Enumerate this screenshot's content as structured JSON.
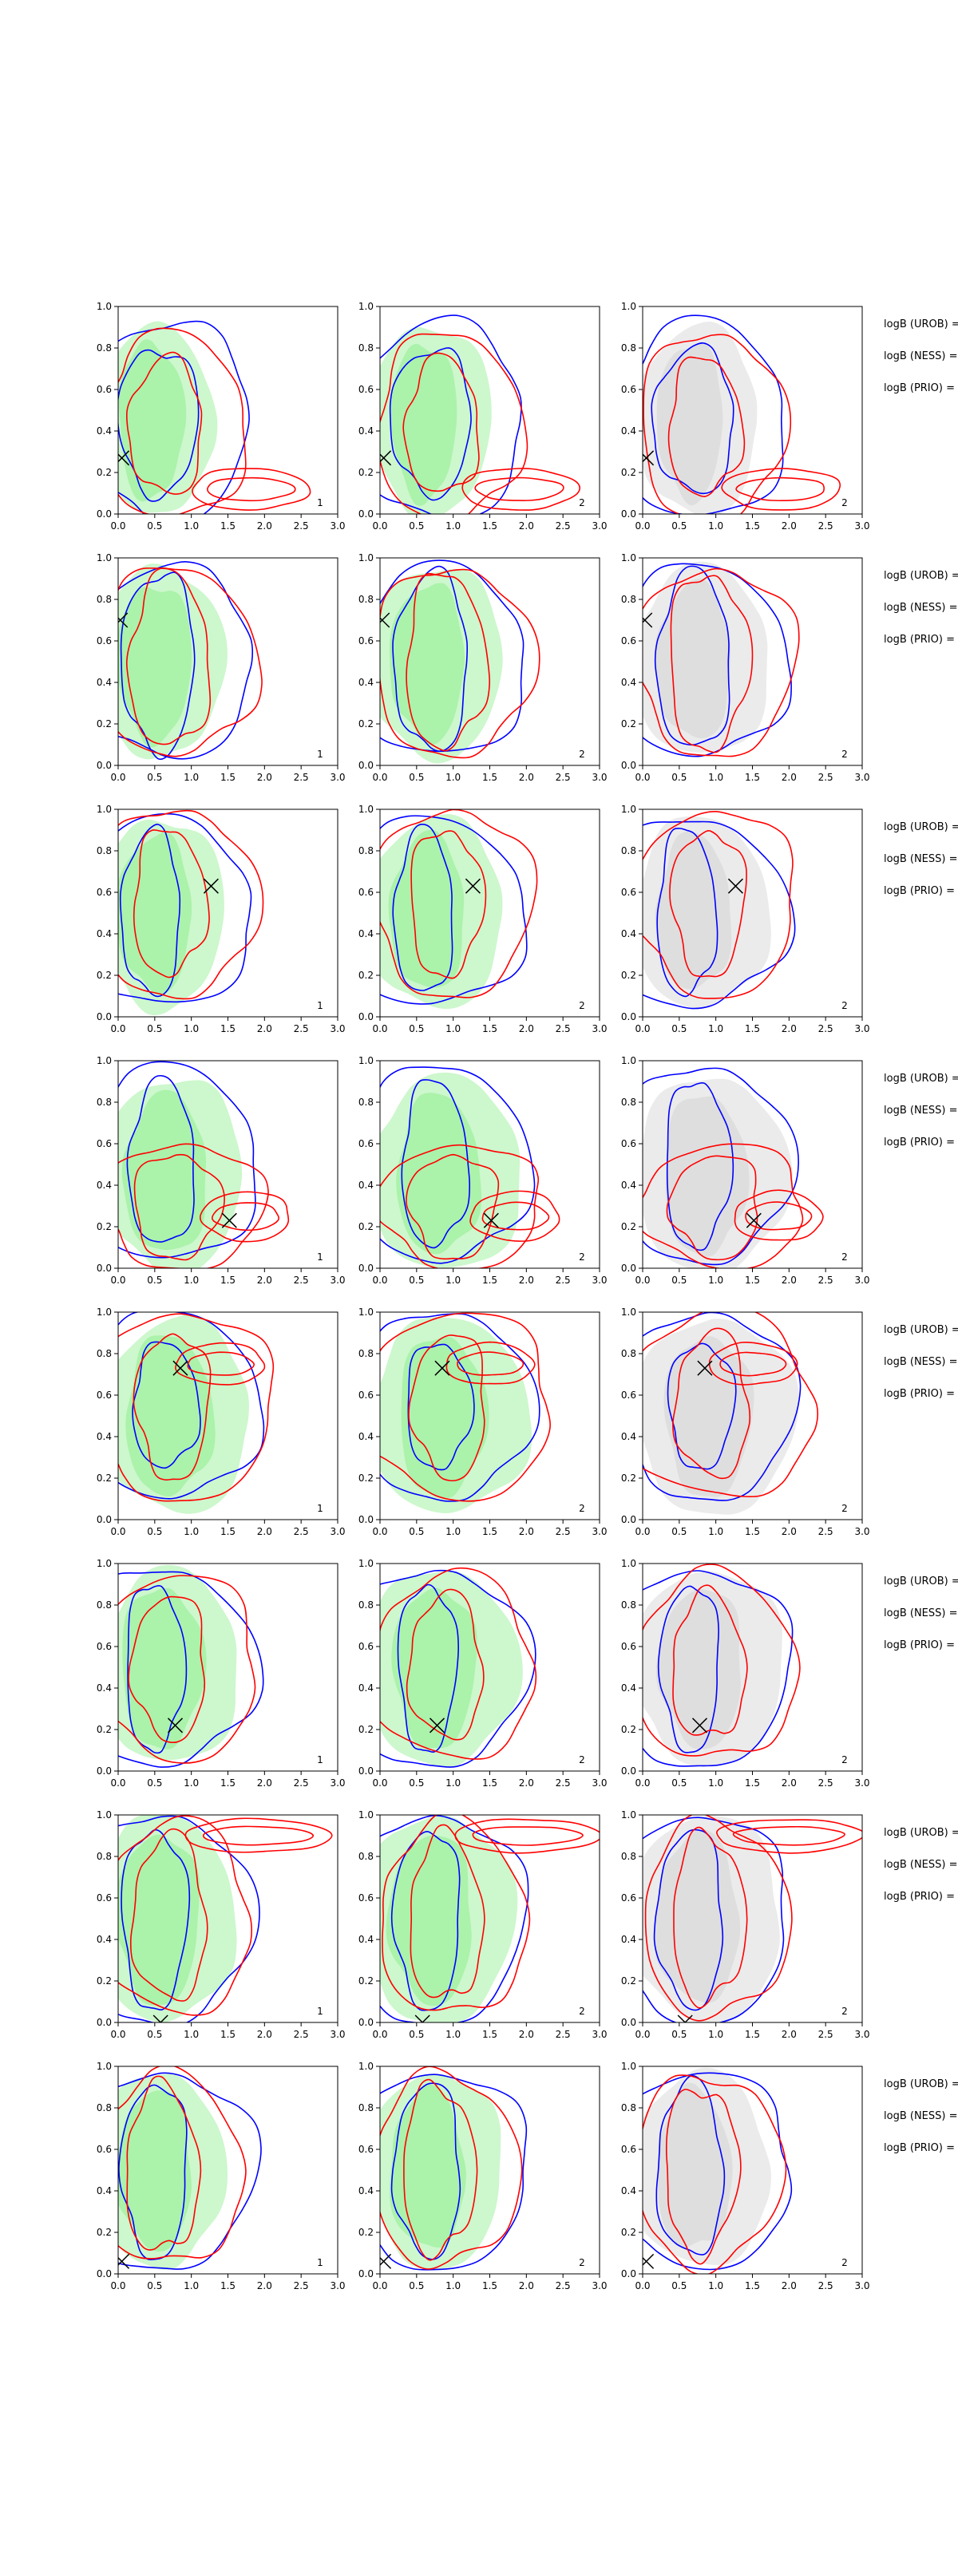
{
  "chart_data": {
    "type": "contour",
    "layout": {
      "rows": 8,
      "cols": 3
    },
    "xlim": [
      0.0,
      3.0
    ],
    "ylim": [
      0.0,
      1.0
    ],
    "xticks": [
      "0.0",
      "0.5",
      "1.0",
      "1.5",
      "2.0",
      "2.5",
      "3.0"
    ],
    "yticks": [
      "0.0",
      "0.2",
      "0.4",
      "0.6",
      "0.8",
      "1.0"
    ],
    "colors": {
      "blue_contour": "#0000ff",
      "red_contour": "#ff0000",
      "green_fill": "#90ee90",
      "gray_fill": "#d3d3d3",
      "marker": "#000000"
    },
    "panel_labels": [
      "1",
      "2",
      "2"
    ],
    "side_labels": [
      "logB (UROB) =",
      "logB (NESS) =",
      "logB (PRIO) ="
    ],
    "rows": [
      {
        "marker": {
          "x": 0.05,
          "y": 0.27
        },
        "blue": {
          "center": [
            0.55,
            0.45
          ],
          "inner": [
            0.55,
            0.35
          ],
          "outer": [
            1.15,
            0.48
          ]
        },
        "red": {
          "center": [
            0.65,
            0.42
          ],
          "inner": [
            0.5,
            0.33
          ],
          "outer": [
            1.0,
            0.45
          ],
          "tail": [
            1.8,
            0.12,
            0.8,
            0.1
          ]
        },
        "fill": {
          "center": [
            0.55,
            0.45
          ],
          "rx": 0.75,
          "ry": 0.46
        }
      },
      {
        "marker": {
          "x": 0.03,
          "y": 0.7
        },
        "blue": {
          "center": [
            0.55,
            0.5
          ],
          "inner": [
            0.5,
            0.43
          ],
          "outer": [
            1.2,
            0.46
          ]
        },
        "red": {
          "center": [
            0.7,
            0.5
          ],
          "inner": [
            0.55,
            0.42
          ],
          "outer": [
            1.1,
            0.45
          ]
        },
        "fill": {
          "center": [
            0.6,
            0.5
          ],
          "rx": 0.85,
          "ry": 0.46
        }
      },
      {
        "marker": {
          "x": 1.27,
          "y": 0.63
        },
        "blue": {
          "center": [
            0.45,
            0.5
          ],
          "inner": [
            0.4,
            0.4
          ],
          "outer": [
            1.3,
            0.45
          ]
        },
        "red": {
          "center": [
            0.7,
            0.55
          ],
          "inner": [
            0.5,
            0.35
          ],
          "outer": [
            1.1,
            0.45
          ]
        },
        "fill": {
          "center": [
            0.6,
            0.5
          ],
          "rx": 0.85,
          "ry": 0.46
        }
      },
      {
        "marker": {
          "x": 1.52,
          "y": 0.23
        },
        "blue": {
          "center": [
            0.6,
            0.5
          ],
          "inner": [
            0.45,
            0.4
          ],
          "outer": [
            1.2,
            0.47
          ]
        },
        "red": {
          "center": [
            0.8,
            0.3
          ],
          "inner": [
            0.6,
            0.25
          ],
          "outer": [
            1.1,
            0.3
          ],
          "tail": [
            1.75,
            0.25,
            0.6,
            0.12
          ]
        },
        "fill": {
          "center": [
            0.75,
            0.45
          ],
          "rx": 0.95,
          "ry": 0.47
        }
      },
      {
        "marker": {
          "x": 0.85,
          "y": 0.73
        },
        "blue": {
          "center": [
            0.65,
            0.55
          ],
          "inner": [
            0.45,
            0.3
          ],
          "outer": [
            1.2,
            0.45
          ]
        },
        "red": {
          "center": [
            0.75,
            0.55
          ],
          "inner": [
            0.5,
            0.35
          ],
          "outer": [
            1.3,
            0.45
          ],
          "tail": [
            1.4,
            0.75,
            0.6,
            0.1
          ]
        },
        "fill": {
          "center": [
            0.8,
            0.5
          ],
          "rx": 1.0,
          "ry": 0.47
        }
      },
      {
        "marker": {
          "x": 0.78,
          "y": 0.22
        },
        "blue": {
          "center": [
            0.5,
            0.5
          ],
          "inner": [
            0.4,
            0.4
          ],
          "outer": [
            1.3,
            0.47
          ]
        },
        "red": {
          "center": [
            0.7,
            0.5
          ],
          "inner": [
            0.5,
            0.35
          ],
          "outer": [
            1.1,
            0.45
          ]
        },
        "fill": {
          "center": [
            0.7,
            0.5
          ],
          "rx": 0.95,
          "ry": 0.47
        }
      },
      {
        "marker": {
          "x": 0.58,
          "y": 0.0
        },
        "blue": {
          "center": [
            0.5,
            0.5
          ],
          "inner": [
            0.45,
            0.43
          ],
          "outer": [
            1.25,
            0.5
          ]
        },
        "red": {
          "center": [
            0.7,
            0.5
          ],
          "inner": [
            0.5,
            0.4
          ],
          "outer": [
            1.0,
            0.47
          ],
          "tail": [
            1.9,
            0.9,
            1.0,
            0.08
          ]
        },
        "fill": {
          "center": [
            0.65,
            0.5
          ],
          "rx": 0.95,
          "ry": 0.5
        }
      },
      {
        "marker": {
          "x": 0.05,
          "y": 0.06
        },
        "blue": {
          "center": [
            0.5,
            0.5
          ],
          "inner": [
            0.45,
            0.42
          ],
          "outer": [
            1.3,
            0.47
          ]
        },
        "red": {
          "center": [
            0.6,
            0.5
          ],
          "inner": [
            0.5,
            0.4
          ],
          "outer": [
            1.0,
            0.46
          ]
        },
        "fill": {
          "center": [
            0.6,
            0.5
          ],
          "rx": 0.85,
          "ry": 0.47
        }
      }
    ]
  }
}
